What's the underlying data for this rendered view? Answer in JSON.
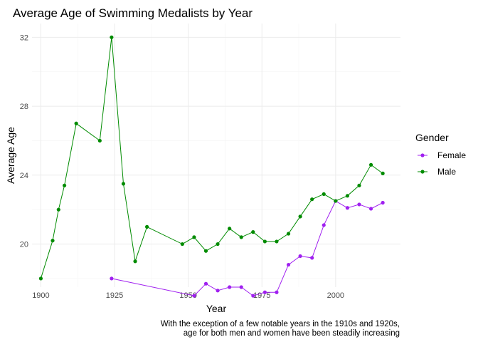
{
  "chart_data": {
    "type": "line",
    "title": "Average Age of Swimming Medalists by Year",
    "xlabel": "Year",
    "ylabel": "Average Age",
    "xlim": [
      1897,
      2022
    ],
    "ylim": [
      17.5,
      32.8
    ],
    "x_ticks": [
      1900,
      1925,
      1950,
      1975,
      2000
    ],
    "y_ticks": [
      20,
      24,
      28,
      32
    ],
    "grid": true,
    "legend": {
      "title": "Gender",
      "placement": "right"
    },
    "caption": [
      "With the exception of a few notable years in the 1910s and 1920s,",
      "age for both men and women have been steadily increasing"
    ],
    "series": [
      {
        "name": "Female",
        "color": "#a020f0",
        "points": [
          [
            1924,
            18.0
          ],
          [
            1952,
            17.0
          ],
          [
            1956,
            17.7
          ],
          [
            1960,
            17.3
          ],
          [
            1964,
            17.5
          ],
          [
            1968,
            17.5
          ],
          [
            1972,
            17.0
          ],
          [
            1976,
            17.2
          ],
          [
            1980,
            17.2
          ],
          [
            1984,
            18.8
          ],
          [
            1988,
            19.3
          ],
          [
            1992,
            19.2
          ],
          [
            1996,
            21.1
          ],
          [
            2000,
            22.5
          ],
          [
            2004,
            22.1
          ],
          [
            2008,
            22.3
          ],
          [
            2012,
            22.05
          ],
          [
            2016,
            22.4
          ]
        ]
      },
      {
        "name": "Male",
        "color": "#008b00",
        "points": [
          [
            1900,
            18.0
          ],
          [
            1904,
            20.2
          ],
          [
            1906,
            22.0
          ],
          [
            1908,
            23.4
          ],
          [
            1912,
            27.0
          ],
          [
            1920,
            26.0
          ],
          [
            1924,
            32.0
          ],
          [
            1928,
            23.5
          ],
          [
            1932,
            19.0
          ],
          [
            1936,
            21.0
          ],
          [
            1948,
            20.0
          ],
          [
            1952,
            20.4
          ],
          [
            1956,
            19.6
          ],
          [
            1960,
            20.0
          ],
          [
            1964,
            20.9
          ],
          [
            1968,
            20.4
          ],
          [
            1972,
            20.7
          ],
          [
            1976,
            20.15
          ],
          [
            1980,
            20.15
          ],
          [
            1984,
            20.6
          ],
          [
            1988,
            21.6
          ],
          [
            1992,
            22.6
          ],
          [
            1996,
            22.9
          ],
          [
            2000,
            22.5
          ],
          [
            2004,
            22.8
          ],
          [
            2008,
            23.4
          ],
          [
            2012,
            24.6
          ],
          [
            2016,
            24.1
          ]
        ]
      }
    ]
  }
}
